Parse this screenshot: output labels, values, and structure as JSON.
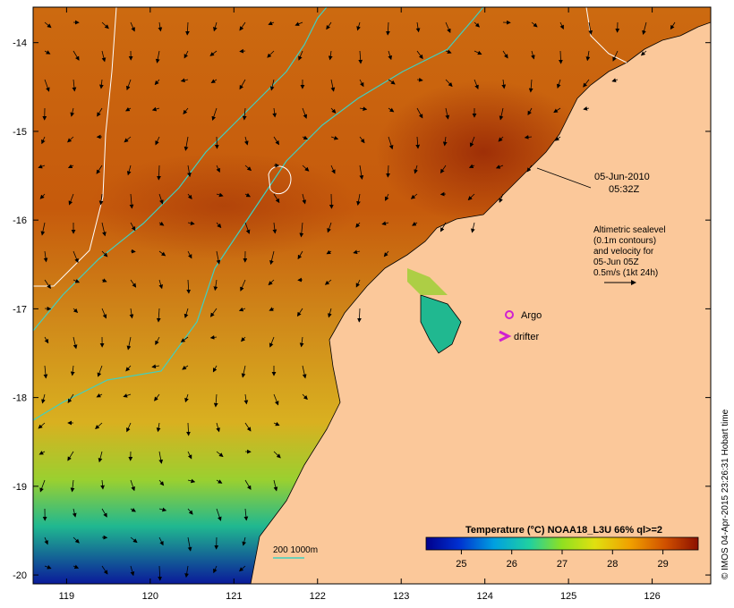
{
  "map": {
    "lon_ticks": [
      "119",
      "120",
      "121",
      "122",
      "123",
      "124",
      "125",
      "126"
    ],
    "lat_ticks": [
      "-14",
      "-15",
      "-16",
      "-17",
      "-18",
      "-19",
      "-20"
    ],
    "lon_range": [
      118.6,
      126.7
    ],
    "lat_range": [
      -20.1,
      -13.6
    ]
  },
  "annotations": {
    "date": "05-Jun-2010",
    "time": "05:32Z",
    "legend_lines": [
      "Altimetric sealevel",
      "(0.1m contours)",
      "and velocity for",
      "05-Jun 05Z",
      "0.5m/s (1kt 24h)"
    ],
    "argo_label": "Argo",
    "drifter_label": "drifter",
    "isobath_label": "200  1000m"
  },
  "colorbar": {
    "title": "Temperature (°C) NOAA18_L3U 66% ql>=2",
    "ticks": [
      "25",
      "26",
      "27",
      "28",
      "29"
    ],
    "range": [
      24.3,
      29.7
    ]
  },
  "credit": "© IMOS 04-Apr-2015 23:26:31 Hobart time",
  "colors": {
    "land": "#fbc89a",
    "warm": "#a83a0a",
    "isobath": "#40d0c0",
    "argo": "#d020d0",
    "drifter": "#d020d0"
  }
}
